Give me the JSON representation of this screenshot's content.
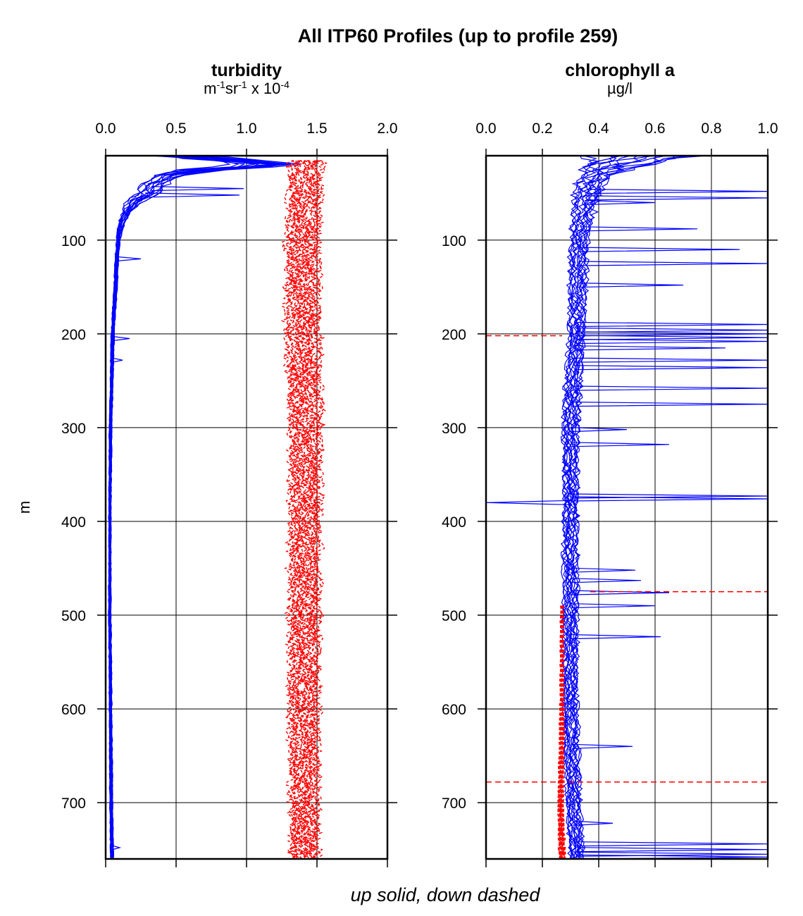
{
  "chart_data": {
    "type": "line",
    "title": "All ITP60 Profiles (up to profile 259)",
    "ylabel": "m",
    "footer": "up solid, down dashed",
    "ylim": [
      760,
      10
    ],
    "yticks": [
      100,
      200,
      300,
      400,
      500,
      600,
      700
    ],
    "colors": {
      "up": "#0000ff",
      "down": "#ff0000",
      "grid": "#000000"
    },
    "panels": [
      {
        "title": "turbidity",
        "units": {
          "main": "m",
          "s1": "-1",
          "mid": "sr",
          "s2": "-1",
          "tail": " x 10",
          "s3": "-4"
        },
        "xlim": [
          0.0,
          2.0
        ],
        "xticks": [
          0.0,
          0.5,
          1.0,
          1.5,
          2.0
        ],
        "xticklabels": [
          "0.0",
          "0.5",
          "1.0",
          "1.5",
          "2.0"
        ],
        "series": [
          {
            "kind": "up",
            "style": "solid",
            "median": [
              [
                10,
                0.55
              ],
              [
                15,
                0.9
              ],
              [
                20,
                1.2
              ],
              [
                25,
                0.7
              ],
              [
                30,
                0.45
              ],
              [
                40,
                0.35
              ],
              [
                50,
                0.3
              ],
              [
                60,
                0.2
              ],
              [
                70,
                0.15
              ],
              [
                80,
                0.12
              ],
              [
                90,
                0.1
              ],
              [
                100,
                0.09
              ],
              [
                120,
                0.08
              ],
              [
                150,
                0.07
              ],
              [
                200,
                0.05
              ],
              [
                300,
                0.035
              ],
              [
                400,
                0.03
              ],
              [
                500,
                0.03
              ],
              [
                600,
                0.035
              ],
              [
                700,
                0.04
              ],
              [
                760,
                0.045
              ]
            ],
            "spread": [
              [
                10,
                0.35
              ],
              [
                20,
                0.4
              ],
              [
                30,
                0.2
              ],
              [
                50,
                0.15
              ],
              [
                70,
                0.06
              ],
              [
                100,
                0.025
              ],
              [
                200,
                0.02
              ],
              [
                400,
                0.015
              ],
              [
                760,
                0.02
              ]
            ],
            "spikes": [
              [
                120,
                0.25
              ],
              [
                205,
                0.17
              ],
              [
                228,
                0.12
              ],
              [
                45,
                0.98
              ],
              [
                52,
                0.95
              ],
              [
                748,
                0.1
              ]
            ]
          },
          {
            "kind": "down",
            "style": "dashed",
            "median": [
              [
                15,
                1.42
              ],
              [
                25,
                1.42
              ],
              [
                100,
                1.4
              ],
              [
                200,
                1.4
              ],
              [
                300,
                1.42
              ],
              [
                500,
                1.41
              ],
              [
                760,
                1.41
              ]
            ],
            "spread": [
              [
                15,
                0.22
              ],
              [
                200,
                0.22
              ],
              [
                760,
                0.19
              ]
            ]
          }
        ]
      },
      {
        "title": "chlorophyll a",
        "units": {
          "main": "µg/l"
        },
        "xlim": [
          0.0,
          1.0
        ],
        "xticks": [
          0.0,
          0.2,
          0.4,
          0.6,
          0.8,
          1.0
        ],
        "xticklabels": [
          "0.0",
          "0.2",
          "0.4",
          "0.6",
          "0.8",
          "1.0"
        ],
        "series": [
          {
            "kind": "up",
            "style": "solid",
            "median": [
              [
                10,
                0.55
              ],
              [
                15,
                0.52
              ],
              [
                20,
                0.45
              ],
              [
                30,
                0.4
              ],
              [
                40,
                0.37
              ],
              [
                60,
                0.35
              ],
              [
                100,
                0.33
              ],
              [
                200,
                0.32
              ],
              [
                300,
                0.3
              ],
              [
                400,
                0.3
              ],
              [
                500,
                0.3
              ],
              [
                600,
                0.3
              ],
              [
                700,
                0.31
              ],
              [
                760,
                0.32
              ]
            ],
            "spread": [
              [
                10,
                0.35
              ],
              [
                30,
                0.1
              ],
              [
                100,
                0.06
              ],
              [
                400,
                0.05
              ],
              [
                760,
                0.05
              ]
            ],
            "spikes": [
              [
                48,
                1.0
              ],
              [
                55,
                1.0
              ],
              [
                60,
                0.6
              ],
              [
                88,
                0.75
              ],
              [
                110,
                0.9
              ],
              [
                125,
                1.0
              ],
              [
                148,
                0.7
              ],
              [
                190,
                1.0
              ],
              [
                196,
                1.0
              ],
              [
                200,
                1.0
              ],
              [
                204,
                1.0
              ],
              [
                208,
                1.0
              ],
              [
                215,
                0.85
              ],
              [
                228,
                1.0
              ],
              [
                236,
                1.0
              ],
              [
                258,
                1.0
              ],
              [
                275,
                1.0
              ],
              [
                302,
                0.5
              ],
              [
                318,
                0.65
              ],
              [
                373,
                1.0
              ],
              [
                376,
                1.0
              ],
              [
                452,
                0.53
              ],
              [
                463,
                0.55
              ],
              [
                476,
                0.65
              ],
              [
                490,
                0.6
              ],
              [
                523,
                0.62
              ],
              [
                640,
                0.52
              ],
              [
                722,
                0.45
              ],
              [
                744,
                1.0
              ],
              [
                750,
                1.0
              ],
              [
                755,
                1.0
              ],
              [
                758,
                1.0
              ],
              [
                380,
                0.0
              ]
            ]
          },
          {
            "kind": "down",
            "style": "dashed",
            "median": [
              [
                490,
                0.27
              ],
              [
                600,
                0.27
              ],
              [
                700,
                0.265
              ],
              [
                760,
                0.27
              ]
            ],
            "spread": [
              [
                490,
                0.01
              ],
              [
                760,
                0.02
              ]
            ],
            "hlines": [
              [
                202,
                0.0,
                0.27
              ],
              [
                475,
                0.37,
                1.0
              ],
              [
                678,
                0.0,
                1.0
              ]
            ]
          }
        ]
      }
    ]
  }
}
